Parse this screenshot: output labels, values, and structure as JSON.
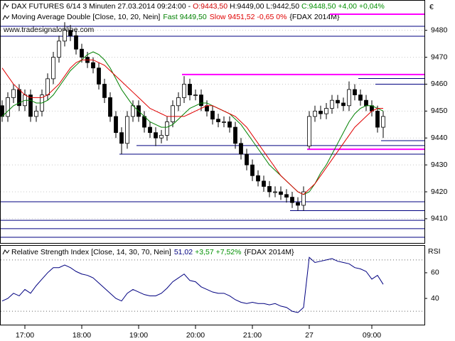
{
  "chart_data": [
    {
      "type": "candlestick",
      "title": [
        {
          "text": "DAX FUTURES 6/14 3 Minuten  27.03.2014 09:24:00 - ",
          "color": "#000000"
        },
        {
          "text": "O:9443,50",
          "color": "#d00000"
        },
        {
          "text": " H:9449,00 L:9442,50 ",
          "color": "#000000"
        },
        {
          "text": "C:9448,50 +4,00 +0,04%",
          "color": "#009000"
        }
      ],
      "indicator": "Moving Average Double [Close, 10, 20, Nein]",
      "instrument": "{FDAX 2014M}",
      "watermark": "www.tradesignalonline.com",
      "currency": "€",
      "categories": [
        null,
        null,
        null,
        null,
        "17:00",
        null,
        null,
        null,
        null,
        null,
        null,
        null,
        null,
        null,
        "18:00",
        null,
        null,
        null,
        null,
        null,
        null,
        null,
        null,
        null,
        "19:00",
        null,
        null,
        null,
        null,
        null,
        null,
        null,
        null,
        null,
        "20:00",
        null,
        null,
        null,
        null,
        null,
        null,
        null,
        null,
        null,
        "21:00",
        null,
        null,
        null,
        null,
        null,
        null,
        null,
        null,
        null,
        "27",
        null,
        null,
        null,
        null,
        null,
        null,
        null,
        null,
        null,
        null,
        "09:00",
        null,
        null
      ],
      "open": [
        9452,
        9448,
        9455,
        9458,
        9452,
        9456,
        9448,
        9450,
        9456,
        9462,
        9470,
        9476,
        9480,
        9478,
        9473,
        9470,
        9468,
        9466,
        9460,
        9455,
        9448,
        9442,
        9438,
        9448,
        9452,
        9448,
        9444,
        9442,
        9440,
        9441,
        9446,
        9452,
        9455,
        9460,
        9456,
        9456,
        9452,
        9450,
        9447,
        9446,
        9446,
        9444,
        9438,
        9434,
        9430,
        9426,
        9424,
        9422,
        9420,
        9420,
        9419,
        9418,
        9416,
        9415,
        9437,
        9448,
        9450,
        9449,
        9451,
        9454,
        9453,
        9452,
        9458,
        9456,
        9454,
        9452,
        9450,
        9444
      ],
      "high": [
        9454,
        9457,
        9460,
        9460,
        9458,
        9458,
        9452,
        9458,
        9464,
        9472,
        9478,
        9483,
        9482,
        9480,
        9475,
        9472,
        9470,
        9468,
        9462,
        9457,
        9450,
        9444,
        9450,
        9454,
        9454,
        9450,
        9446,
        9444,
        9443,
        9448,
        9454,
        9457,
        9463,
        9462,
        9458,
        9458,
        9454,
        9452,
        9449,
        9448,
        9448,
        9446,
        9440,
        9436,
        9432,
        9428,
        9426,
        9424,
        9422,
        9422,
        9421,
        9420,
        9418,
        9422,
        9450,
        9452,
        9452,
        9453,
        9456,
        9456,
        9455,
        9461,
        9460,
        9458,
        9456,
        9454,
        9452,
        9450
      ],
      "low": [
        9446,
        9446,
        9453,
        9450,
        9450,
        9446,
        9446,
        9448,
        9454,
        9460,
        9468,
        9474,
        9476,
        9471,
        9468,
        9466,
        9464,
        9458,
        9453,
        9446,
        9440,
        9434,
        9436,
        9446,
        9446,
        9442,
        9440,
        9437,
        9438,
        9439,
        9444,
        9450,
        9453,
        9454,
        9454,
        9450,
        9448,
        9445,
        9444,
        9444,
        9442,
        9436,
        9432,
        9428,
        9424,
        9422,
        9420,
        9418,
        9418,
        9417,
        9416,
        9414,
        9413,
        9413,
        9436,
        9446,
        9447,
        9447,
        9449,
        9451,
        9450,
        9450,
        9454,
        9452,
        9450,
        9448,
        9442,
        9440
      ],
      "close": [
        9448,
        9455,
        9458,
        9452,
        9456,
        9448,
        9450,
        9456,
        9462,
        9470,
        9476,
        9480,
        9478,
        9473,
        9470,
        9468,
        9466,
        9460,
        9455,
        9448,
        9442,
        9438,
        9448,
        9452,
        9448,
        9444,
        9442,
        9440,
        9441,
        9446,
        9452,
        9455,
        9460,
        9456,
        9456,
        9452,
        9450,
        9447,
        9446,
        9446,
        9444,
        9438,
        9434,
        9430,
        9426,
        9424,
        9422,
        9420,
        9420,
        9419,
        9418,
        9416,
        9415,
        9420,
        9448,
        9450,
        9449,
        9451,
        9454,
        9453,
        9452,
        9458,
        9456,
        9454,
        9452,
        9450,
        9444,
        9448
      ],
      "up_color": "#ffffff",
      "down_color": "#000000",
      "series": [
        {
          "name": "Fast",
          "last": "9449,50",
          "color": "#008000",
          "values": [
            9448,
            9450,
            9452,
            9453,
            9454,
            9454,
            9453,
            9453,
            9454,
            9456,
            9459,
            9462,
            9465,
            9467,
            9469,
            9471,
            9472,
            9471,
            9469,
            9466,
            9462,
            9458,
            9455,
            9452,
            9450,
            9448,
            9446,
            9445,
            9444,
            9444,
            9445,
            9447,
            9449,
            9451,
            9452,
            9453,
            9453,
            9452,
            9451,
            9450,
            9449,
            9447,
            9445,
            9442,
            9439,
            9436,
            9433,
            9430,
            9428,
            9426,
            9424,
            9422,
            9420,
            9419,
            9420,
            9423,
            9427,
            9430,
            9434,
            9438,
            9442,
            9446,
            9449,
            9451,
            9452,
            9452,
            9451,
            9450
          ]
        },
        {
          "name": "Slow",
          "last": "9451,52 -0,65 0%",
          "color": "#e00000",
          "values": [
            9466,
            9463,
            9460,
            9458,
            9456,
            9455,
            9455,
            9455,
            9456,
            9458,
            9460,
            9463,
            9466,
            9468,
            9469,
            9469,
            9469,
            9468,
            9467,
            9465,
            9463,
            9461,
            9459,
            9457,
            9455,
            9453,
            9451,
            9450,
            9449,
            9448,
            9448,
            9448,
            9448,
            9449,
            9450,
            9451,
            9452,
            9452,
            9451,
            9450,
            9449,
            9448,
            9446,
            9444,
            9441,
            9438,
            9435,
            9432,
            9429,
            9426,
            9424,
            9422,
            9420,
            9419,
            9421,
            9423,
            9426,
            9429,
            9432,
            9435,
            9438,
            9441,
            9444,
            9446,
            9448,
            9450,
            9451,
            9451
          ]
        }
      ],
      "hlines": [
        {
          "value": 9486,
          "from": 58,
          "color": "#ff00ff"
        },
        {
          "value": 9481.5,
          "from": 0,
          "color": "#000080"
        },
        {
          "value": 9477.8,
          "from": 0,
          "color": "#000080"
        },
        {
          "value": 9463.6,
          "from": 32,
          "color": "#ff00ff"
        },
        {
          "value": 9462.1,
          "from": 63,
          "color": "#000080"
        },
        {
          "value": 9460,
          "from": 66,
          "color": "#000080"
        },
        {
          "value": 9439,
          "from": 67,
          "color": "#000080"
        },
        {
          "value": 9437.2,
          "from": 24,
          "color": "#000080"
        },
        {
          "value": 9435.8,
          "from": 54,
          "color": "#ff00ff"
        },
        {
          "value": 9434,
          "from": 21,
          "color": "#000080"
        },
        {
          "value": 9416.3,
          "from": 0,
          "color": "#000080"
        },
        {
          "value": 9413,
          "from": 51,
          "color": "#000080"
        },
        {
          "value": 9409.4,
          "from": 0,
          "color": "#000080"
        },
        {
          "value": 9406.3,
          "from": 0,
          "color": "#000080"
        },
        {
          "value": 9403.1,
          "from": 0,
          "color": "#000080"
        }
      ],
      "ylim": [
        9401,
        9491
      ],
      "yticks": [
        9410,
        9420,
        9430,
        9440,
        9450,
        9460,
        9470,
        9480
      ],
      "grid": true
    },
    {
      "type": "line",
      "params": "[Close, 14, 30, 70, Nein]",
      "last": "51,02",
      "change": "+3,57 +7,52%",
      "instrument": "{FDAX 2014M}",
      "axis_label": "RSI",
      "series": [
        {
          "name": "Relative Strength Index",
          "color": "#000080",
          "values": [
            38,
            40,
            44,
            42,
            47,
            44,
            50,
            55,
            60,
            64,
            64,
            66,
            64,
            61,
            59,
            58,
            56,
            52,
            48,
            44,
            40,
            38,
            44,
            47,
            45,
            43,
            42,
            42,
            44,
            48,
            53,
            56,
            59,
            54,
            53,
            49,
            47,
            45,
            44,
            44,
            42,
            39,
            37,
            36,
            37,
            36,
            36,
            35,
            36,
            34,
            33,
            30,
            29,
            33,
            72,
            68,
            69,
            70,
            71,
            69,
            68,
            67,
            64,
            63,
            61,
            55,
            58,
            51
          ]
        }
      ],
      "levels": [
        30,
        70
      ],
      "ylim": [
        19,
        81
      ],
      "yticks": [
        40,
        60
      ]
    }
  ]
}
